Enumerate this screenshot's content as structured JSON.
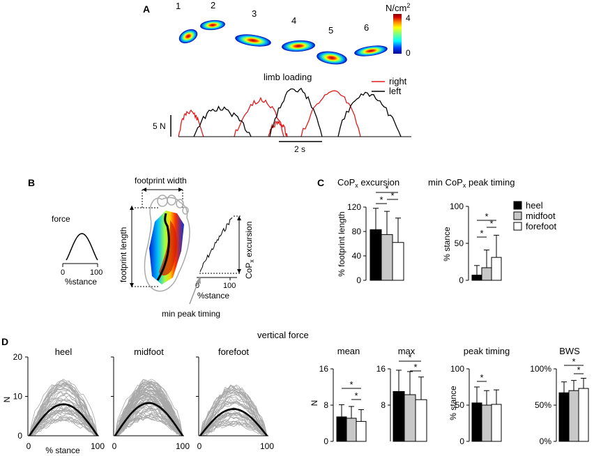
{
  "panel_labels": {
    "a": "A",
    "b": "B",
    "c": "C",
    "d": "D"
  },
  "panel_a": {
    "step_numbers": [
      "1",
      "2",
      "3",
      "4",
      "5",
      "6"
    ],
    "colorbar": {
      "unit": "N/cm",
      "unit_exp": "2",
      "max": "4",
      "min": "0",
      "colors": [
        "#00008f",
        "#0040ff",
        "#00ffff",
        "#80ff80",
        "#ffff00",
        "#ff8000",
        "#d00000",
        "#800000"
      ]
    },
    "title": "limb loading",
    "legend": [
      {
        "label": "right",
        "color": "#e41a1c"
      },
      {
        "label": "left",
        "color": "#000000"
      }
    ],
    "scale_force": "5 N",
    "scale_time": "2 s"
  },
  "panel_b": {
    "force_label": "force",
    "force_axis": {
      "min": "0",
      "max": "100",
      "label": "%stance"
    },
    "footprint_width": "footprint width",
    "footprint_length": "footprint length",
    "excursion_main": "CoP",
    "excursion_sub": "x",
    "excursion_rest": " excursion",
    "cop_axis": {
      "min": "0",
      "max": "100",
      "label": "%stance"
    },
    "min_peak_timing": "min peak timing"
  },
  "panel_c": {
    "legend": [
      {
        "label": "heel",
        "color": "#000000"
      },
      {
        "label": "midfoot",
        "color": "#c8c8c8"
      },
      {
        "label": "forefoot",
        "color": "#ffffff"
      }
    ]
  },
  "panel_d": {
    "title": "vertical force",
    "trace_panels": [
      {
        "name": "heel",
        "mean_peak": 8.0,
        "peak_at": 50
      },
      {
        "name": "midfoot",
        "mean_peak": 8.3,
        "peak_at": 50
      },
      {
        "name": "forefoot",
        "mean_peak": 6.8,
        "peak_at": 55
      }
    ],
    "trace_yaxis": {
      "label": "N",
      "ticks": [
        "0",
        "10",
        "20"
      ]
    },
    "trace_xaxis": {
      "label": "% stance",
      "ticks": [
        "0",
        "100"
      ]
    }
  },
  "chart_data": [
    {
      "type": "bar",
      "id": "cop-excursion",
      "title_main": "CoP",
      "title_sub": "x",
      "title_rest": " excursion",
      "categories": [
        "heel",
        "midfoot",
        "forefoot"
      ],
      "values": [
        83,
        75,
        62
      ],
      "errors": [
        35,
        38,
        40
      ],
      "ylabel": "% footprint length",
      "ylim": [
        0,
        120
      ],
      "yticks": [
        "0",
        "40",
        "80",
        "120"
      ],
      "significance": [
        "*",
        "*",
        "*"
      ]
    },
    {
      "type": "bar",
      "id": "min-cop-peak-timing",
      "title_pre": "min CoP",
      "title_sub": "x",
      "title_rest": " peak timing",
      "categories": [
        "heel",
        "midfoot",
        "forefoot"
      ],
      "values": [
        7,
        17,
        31
      ],
      "errors": [
        13,
        24,
        30
      ],
      "ylabel": "% stance",
      "ylim": [
        0,
        100
      ],
      "yticks": [
        "0",
        "50",
        "100"
      ],
      "significance": [
        "*",
        "*",
        "*"
      ]
    },
    {
      "type": "bar",
      "id": "vf-mean",
      "title": "mean",
      "categories": [
        "heel",
        "midfoot",
        "forefoot"
      ],
      "values": [
        5.4,
        5.1,
        4.4
      ],
      "errors": [
        2.7,
        2.6,
        2.6
      ],
      "ylabel": "N",
      "ylim": [
        0,
        16
      ],
      "yticks": [
        "0",
        "8",
        "16"
      ],
      "significance": [
        "*",
        "*"
      ]
    },
    {
      "type": "bar",
      "id": "vf-max",
      "title": "max",
      "categories": [
        "heel",
        "midfoot",
        "forefoot"
      ],
      "values": [
        11.0,
        10.3,
        9.2
      ],
      "errors": [
        4.7,
        5.1,
        5.0
      ],
      "ylabel": "",
      "ylim": [
        0,
        16
      ],
      "yticks": [
        "8",
        "16"
      ],
      "significance": [
        "*",
        "*"
      ]
    },
    {
      "type": "bar",
      "id": "vf-peak-timing",
      "title": "peak timing",
      "categories": [
        "heel",
        "midfoot",
        "forefoot"
      ],
      "values": [
        53,
        50,
        51
      ],
      "errors": [
        22,
        20,
        20
      ],
      "ylabel": "% stance",
      "ylim": [
        0,
        100
      ],
      "yticks": [
        "0",
        "50",
        "100"
      ],
      "significance": [
        "*"
      ]
    },
    {
      "type": "bar",
      "id": "vf-bws",
      "title": "BWS",
      "categories": [
        "heel",
        "midfoot",
        "forefoot"
      ],
      "values": [
        67,
        70,
        73
      ],
      "errors": [
        15,
        14,
        14
      ],
      "ylabel": "",
      "ylim": [
        0,
        100
      ],
      "yticks": [
        "0%",
        "50%",
        "100%"
      ],
      "significance": [
        "*",
        "*"
      ]
    }
  ]
}
